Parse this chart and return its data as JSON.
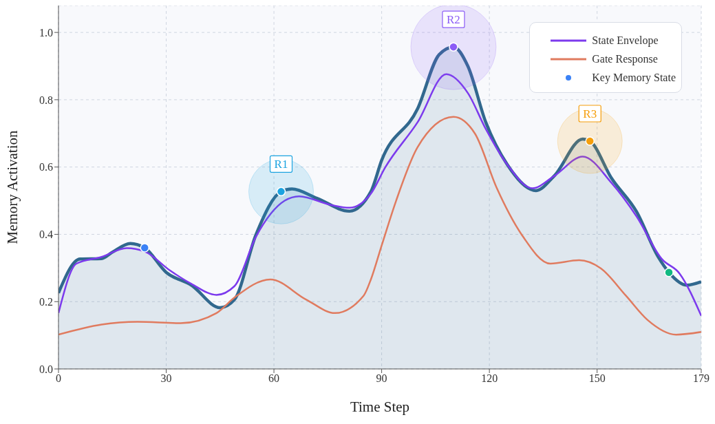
{
  "chart_data": {
    "type": "line",
    "xlabel": "Time Step",
    "ylabel": "Memory Activation",
    "xlim": [
      0,
      179
    ],
    "xticks": [
      0,
      30,
      60,
      90,
      120,
      150,
      179
    ],
    "ylim": [
      0,
      1.08
    ],
    "yticks": [
      {
        "value": 0,
        "label": "0.0"
      },
      {
        "value": 0.2,
        "label": "0.2"
      },
      {
        "value": 0.4,
        "label": "0.4"
      },
      {
        "value": 0.6,
        "label": "0.6"
      },
      {
        "value": 0.8,
        "label": "0.8"
      },
      {
        "value": 1,
        "label": "1.0"
      }
    ],
    "grid": true,
    "legend": "top right",
    "series": [
      {
        "type": "area",
        "color": "#31688e",
        "x": [
          0,
          6,
          12,
          15,
          20,
          24,
          30,
          37,
          45,
          49,
          55,
          62,
          65,
          72,
          81,
          87,
          90,
          100,
          106,
          110,
          114,
          119,
          125,
          133,
          138,
          146,
          148,
          154,
          161,
          167,
          170,
          175,
          179
        ],
        "values": [
          0.226,
          0.327,
          0.328,
          0.347,
          0.373,
          0.36,
          0.287,
          0.249,
          0.182,
          0.206,
          0.399,
          0.527,
          0.535,
          0.507,
          0.469,
          0.527,
          0.62,
          0.773,
          0.934,
          0.957,
          0.9,
          0.733,
          0.607,
          0.53,
          0.573,
          0.683,
          0.677,
          0.567,
          0.467,
          0.333,
          0.287,
          0.249,
          0.259
        ]
      },
      {
        "name": "State Envelope",
        "color": "#7c3aed",
        "x": [
          0,
          5,
          12,
          19,
          24,
          31,
          37,
          44,
          49,
          55,
          63,
          67,
          76,
          81,
          87,
          91,
          100,
          108,
          114,
          119,
          125,
          132,
          138,
          146,
          154,
          161,
          168,
          173,
          179
        ],
        "values": [
          0.166,
          0.313,
          0.333,
          0.359,
          0.349,
          0.293,
          0.253,
          0.22,
          0.246,
          0.393,
          0.5,
          0.513,
          0.487,
          0.479,
          0.521,
          0.599,
          0.733,
          0.876,
          0.82,
          0.713,
          0.607,
          0.537,
          0.573,
          0.631,
          0.553,
          0.453,
          0.327,
          0.283,
          0.158
        ]
      },
      {
        "name": "Gate Response",
        "color": "#e07b5f",
        "x": [
          0,
          12,
          22,
          34,
          44,
          49,
          59,
          69,
          77,
          85,
          87,
          90,
          94,
          100,
          110,
          116,
          122,
          129,
          137,
          145,
          151,
          158,
          164,
          172,
          179
        ],
        "values": [
          0.102,
          0.132,
          0.14,
          0.136,
          0.166,
          0.212,
          0.266,
          0.206,
          0.166,
          0.218,
          0.266,
          0.367,
          0.499,
          0.659,
          0.749,
          0.699,
          0.539,
          0.399,
          0.313,
          0.323,
          0.299,
          0.218,
          0.146,
          0.102,
          0.11
        ]
      },
      {
        "type": "scatter",
        "name": "Key Memory State",
        "color": "#3b82f6",
        "x": [
          24,
          62,
          110,
          148,
          170
        ],
        "values": [
          0.36,
          0.527,
          0.957,
          0.677,
          0.287
        ],
        "colors": [
          "#3b82f6",
          "#1ba3e0",
          "#8b5cf6",
          "#f59e0b",
          "#10b981"
        ]
      }
    ],
    "annotations": [
      {
        "text": "R1",
        "x": 62,
        "y": 0.527
      },
      {
        "text": "R2",
        "x": 110,
        "y": 0.957
      },
      {
        "text": "R3",
        "x": 148,
        "y": 0.677
      }
    ]
  }
}
